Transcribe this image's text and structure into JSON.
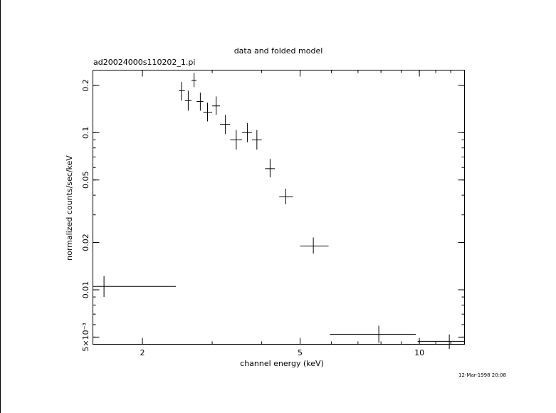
{
  "chart_data": {
    "type": "scatter",
    "title": "data and folded model",
    "subtitle": "ad20024000s110202_1.pi",
    "xlabel": "channel energy (keV)",
    "ylabel": "normalized counts/sec/keV",
    "timestamp": "12-Mar-1998 20:08",
    "x_scale": "log",
    "y_scale": "log",
    "xlim": [
      1.5,
      13.0
    ],
    "ylim": [
      0.0045,
      0.25
    ],
    "x_ticks": [
      {
        "value": 2,
        "label": "2"
      },
      {
        "value": 5,
        "label": "5"
      },
      {
        "value": 10,
        "label": "10"
      }
    ],
    "y_ticks": [
      {
        "value": 0.2,
        "label": "0.2"
      },
      {
        "value": 0.1,
        "label": "0.1"
      },
      {
        "value": 0.05,
        "label": "0.05"
      },
      {
        "value": 0.02,
        "label": "0.02"
      },
      {
        "value": 0.01,
        "label": "0.01"
      },
      {
        "value": 0.005,
        "label": "5×10⁻³"
      }
    ],
    "grid": false,
    "legend": "none",
    "series": [
      {
        "points": [
          {
            "x": 1.6,
            "xlo": 1.5,
            "xhi": 2.43,
            "y": 0.0105,
            "ylo": 0.009,
            "yhi": 0.0122
          },
          {
            "x": 2.51,
            "xlo": 2.47,
            "xhi": 2.56,
            "y": 0.185,
            "ylo": 0.16,
            "yhi": 0.21
          },
          {
            "x": 2.61,
            "xlo": 2.56,
            "xhi": 2.66,
            "y": 0.16,
            "ylo": 0.138,
            "yhi": 0.185
          },
          {
            "x": 2.7,
            "xlo": 2.66,
            "xhi": 2.74,
            "y": 0.215,
            "ylo": 0.195,
            "yhi": 0.24
          },
          {
            "x": 2.8,
            "xlo": 2.74,
            "xhi": 2.85,
            "y": 0.158,
            "ylo": 0.138,
            "yhi": 0.18
          },
          {
            "x": 2.92,
            "xlo": 2.85,
            "xhi": 3.0,
            "y": 0.135,
            "ylo": 0.118,
            "yhi": 0.155
          },
          {
            "x": 3.07,
            "xlo": 3.0,
            "xhi": 3.14,
            "y": 0.148,
            "ylo": 0.13,
            "yhi": 0.17
          },
          {
            "x": 3.24,
            "xlo": 3.14,
            "xhi": 3.33,
            "y": 0.113,
            "ylo": 0.098,
            "yhi": 0.13
          },
          {
            "x": 3.45,
            "xlo": 3.33,
            "xhi": 3.57,
            "y": 0.09,
            "ylo": 0.078,
            "yhi": 0.104
          },
          {
            "x": 3.68,
            "xlo": 3.57,
            "xhi": 3.78,
            "y": 0.1,
            "ylo": 0.087,
            "yhi": 0.115
          },
          {
            "x": 3.89,
            "xlo": 3.78,
            "xhi": 4.0,
            "y": 0.09,
            "ylo": 0.078,
            "yhi": 0.104
          },
          {
            "x": 4.2,
            "xlo": 4.08,
            "xhi": 4.32,
            "y": 0.059,
            "ylo": 0.052,
            "yhi": 0.068
          },
          {
            "x": 4.6,
            "xlo": 4.43,
            "xhi": 4.8,
            "y": 0.039,
            "ylo": 0.035,
            "yhi": 0.044
          },
          {
            "x": 5.4,
            "xlo": 5.0,
            "xhi": 5.9,
            "y": 0.019,
            "ylo": 0.017,
            "yhi": 0.0215
          },
          {
            "x": 7.9,
            "xlo": 5.95,
            "xhi": 9.8,
            "y": 0.0052,
            "ylo": 0.0046,
            "yhi": 0.0059
          },
          {
            "x": 11.9,
            "xlo": 9.9,
            "xhi": 13.0,
            "y": 0.0047,
            "ylo": 0.0042,
            "yhi": 0.0052
          }
        ]
      }
    ]
  }
}
